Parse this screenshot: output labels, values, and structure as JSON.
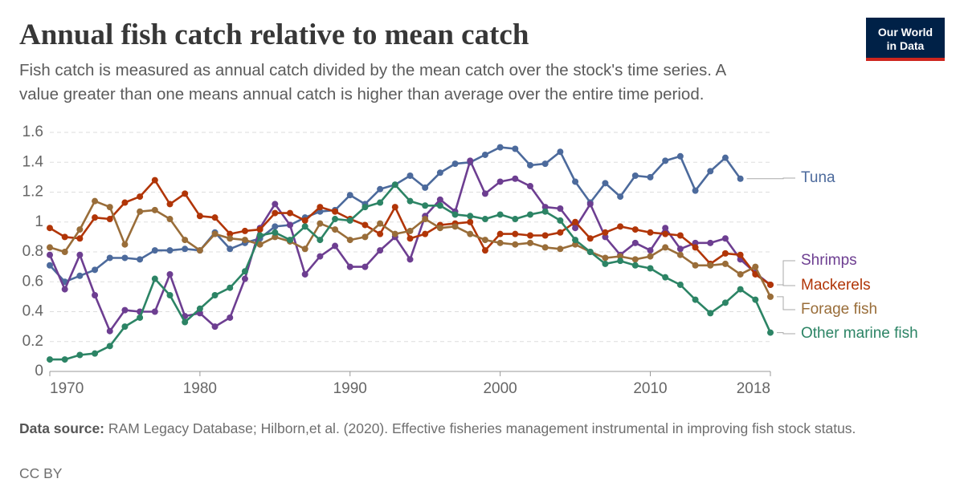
{
  "chart_data": {
    "type": "line",
    "title": "Annual fish catch relative to mean catch",
    "subtitle": [
      "Fish catch is measured as annual catch divided by the mean catch over the stock's time series. A",
      "value greater than one means annual catch is higher than average over the entire time period."
    ],
    "logo": [
      "Our World",
      "in Data"
    ],
    "source_label": "Data source:",
    "source": "RAM Legacy Database; Hilborn,et al. (2020). Effective fisheries management instrumental in improving fish stock status.",
    "license": "CC BY",
    "x": [
      1970,
      1971,
      1972,
      1973,
      1974,
      1975,
      1976,
      1977,
      1978,
      1979,
      1980,
      1981,
      1982,
      1983,
      1984,
      1985,
      1986,
      1987,
      1988,
      1989,
      1990,
      1991,
      1992,
      1993,
      1994,
      1995,
      1996,
      1997,
      1998,
      1999,
      2000,
      2001,
      2002,
      2003,
      2004,
      2005,
      2006,
      2007,
      2008,
      2009,
      2010,
      2011,
      2012,
      2013,
      2014,
      2015,
      2016,
      2017,
      2018
    ],
    "xlim": [
      1970,
      2018
    ],
    "xticks": [
      1970,
      1980,
      1990,
      2000,
      2010,
      2018
    ],
    "ylim": [
      0,
      1.6
    ],
    "yticks": [
      0,
      0.2,
      0.4,
      0.6,
      0.8,
      1,
      1.2,
      1.4,
      1.6
    ],
    "grid": true,
    "series": [
      {
        "name": "Tuna",
        "color": "#4c6a9c",
        "values": [
          0.71,
          0.6,
          0.64,
          0.68,
          0.76,
          0.76,
          0.75,
          0.81,
          0.81,
          0.82,
          0.81,
          0.93,
          0.82,
          0.86,
          0.89,
          0.97,
          0.98,
          1.03,
          1.07,
          1.08,
          1.18,
          1.12,
          1.22,
          1.25,
          1.31,
          1.23,
          1.33,
          1.39,
          1.4,
          1.45,
          1.5,
          1.49,
          1.38,
          1.39,
          1.47,
          1.27,
          1.13,
          1.26,
          1.17,
          1.31,
          1.3,
          1.41,
          1.44,
          1.21,
          1.34,
          1.43,
          1.29,
          null,
          null
        ]
      },
      {
        "name": "Shrimps",
        "color": "#6d3e91",
        "values": [
          0.78,
          0.55,
          0.78,
          0.51,
          0.27,
          0.41,
          0.4,
          0.4,
          0.65,
          0.37,
          0.39,
          0.3,
          0.36,
          0.62,
          0.96,
          1.12,
          0.98,
          0.65,
          0.77,
          0.84,
          0.7,
          0.7,
          0.81,
          0.9,
          0.75,
          1.04,
          1.15,
          1.07,
          1.41,
          1.19,
          1.27,
          1.29,
          1.24,
          1.1,
          1.09,
          0.96,
          1.12,
          0.9,
          0.78,
          0.86,
          0.81,
          0.96,
          0.82,
          0.86,
          0.86,
          0.89,
          0.75,
          0.66,
          0.58
        ]
      },
      {
        "name": "Mackerels",
        "color": "#b13507",
        "values": [
          0.96,
          0.9,
          0.89,
          1.03,
          1.02,
          1.13,
          1.17,
          1.28,
          1.12,
          1.19,
          1.04,
          1.03,
          0.92,
          0.94,
          0.95,
          1.06,
          1.06,
          1.01,
          1.1,
          1.07,
          1.02,
          0.98,
          0.92,
          1.1,
          0.89,
          0.92,
          0.98,
          0.99,
          1.0,
          0.81,
          0.92,
          0.92,
          0.91,
          0.91,
          0.93,
          1.0,
          0.89,
          0.93,
          0.97,
          0.95,
          0.93,
          0.92,
          0.91,
          0.83,
          0.72,
          0.79,
          0.78,
          0.65,
          0.58
        ]
      },
      {
        "name": "Forage fish",
        "color": "#996d39",
        "values": [
          0.83,
          0.8,
          0.95,
          1.14,
          1.1,
          0.85,
          1.07,
          1.08,
          1.02,
          0.88,
          0.81,
          0.92,
          0.89,
          0.88,
          0.85,
          0.9,
          0.87,
          0.82,
          0.99,
          0.95,
          0.88,
          0.9,
          0.99,
          0.92,
          0.94,
          1.02,
          0.96,
          0.97,
          0.92,
          0.88,
          0.86,
          0.85,
          0.86,
          0.83,
          0.82,
          0.85,
          0.8,
          0.76,
          0.77,
          0.75,
          0.77,
          0.83,
          0.78,
          0.71,
          0.71,
          0.72,
          0.65,
          0.7,
          0.5
        ]
      },
      {
        "name": "Other marine fish",
        "color": "#2c8465",
        "values": [
          0.08,
          0.08,
          0.11,
          0.12,
          0.17,
          0.3,
          0.36,
          0.62,
          0.51,
          0.33,
          0.42,
          0.51,
          0.56,
          0.67,
          0.91,
          0.93,
          0.88,
          0.97,
          0.88,
          1.02,
          1.01,
          1.1,
          1.13,
          1.25,
          1.14,
          1.11,
          1.11,
          1.05,
          1.04,
          1.02,
          1.05,
          1.02,
          1.05,
          1.07,
          1.01,
          0.88,
          0.8,
          0.72,
          0.74,
          0.71,
          0.69,
          0.63,
          0.58,
          0.48,
          0.39,
          0.46,
          0.55,
          0.48,
          0.26
        ]
      }
    ]
  }
}
